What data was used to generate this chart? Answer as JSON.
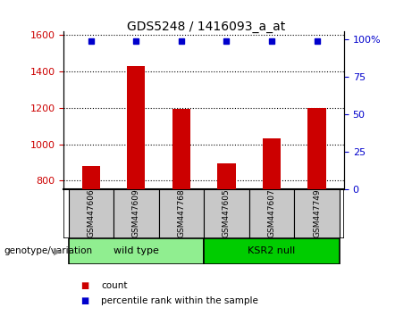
{
  "title": "GDS5248 / 1416093_a_at",
  "samples": [
    "GSM447606",
    "GSM447609",
    "GSM447768",
    "GSM447605",
    "GSM447607",
    "GSM447749"
  ],
  "counts": [
    880,
    1430,
    1195,
    895,
    1030,
    1200
  ],
  "percentiles": [
    99,
    99,
    99,
    99,
    99,
    99
  ],
  "ylim_left": [
    750,
    1620
  ],
  "ylim_right": [
    0,
    105
  ],
  "yticks_left": [
    800,
    1000,
    1200,
    1400,
    1600
  ],
  "yticks_right": [
    0,
    25,
    50,
    75,
    100
  ],
  "ytick_labels_right": [
    "0",
    "25",
    "50",
    "75",
    "100%"
  ],
  "bar_color": "#CC0000",
  "marker_color": "#0000CC",
  "sample_box_color": "#C8C8C8",
  "left_tick_color": "#CC0000",
  "right_tick_color": "#0000CC",
  "genotype_label": "genotype/variation",
  "wt_color": "#90EE90",
  "ks_color": "#00CC00",
  "bar_bottom": 750,
  "percentile_value": 99
}
